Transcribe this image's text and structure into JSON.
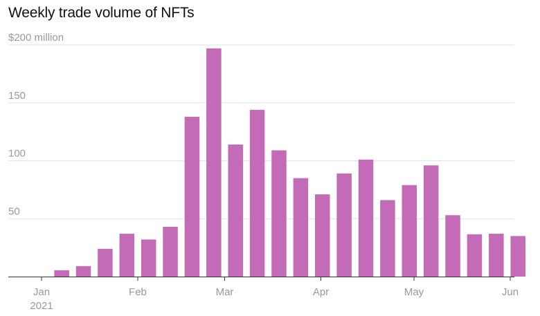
{
  "chart_data": {
    "type": "bar",
    "title": "Weekly trade volume of NFTs",
    "y_unit_label": "$200 million",
    "ylim": [
      0,
      200
    ],
    "yticks": [
      {
        "value": 200,
        "label": "$200 million"
      },
      {
        "value": 150,
        "label": "150"
      },
      {
        "value": 100,
        "label": "100"
      },
      {
        "value": 50,
        "label": "50"
      }
    ],
    "x_tick_labels": [
      "Jan",
      "Feb",
      "Mar",
      "Apr",
      "May",
      "Jun"
    ],
    "x_year_label": "2021",
    "x_range": [
      "2021-01-01",
      "2021-06-01"
    ],
    "x_ticks": [
      "2021-01-01",
      "2021-02-01",
      "2021-03-01",
      "2021-04-01",
      "2021-05-01",
      "2021-06-01"
    ],
    "bar_color": "#c46bb8",
    "grid": true,
    "x": [
      "2021-01-04",
      "2021-01-11",
      "2021-01-18",
      "2021-01-25",
      "2021-02-01",
      "2021-02-08",
      "2021-02-15",
      "2021-02-22",
      "2021-03-01",
      "2021-03-08",
      "2021-03-15",
      "2021-03-22",
      "2021-03-29",
      "2021-04-05",
      "2021-04-12",
      "2021-04-19",
      "2021-04-26",
      "2021-05-03",
      "2021-05-10",
      "2021-05-17",
      "2021-05-24",
      "2021-05-31"
    ],
    "values": [
      5.5,
      9,
      24,
      37,
      32,
      43,
      138,
      197,
      114,
      144,
      109,
      85,
      71,
      89,
      101,
      66,
      79,
      96,
      53,
      36.5,
      37,
      35
    ]
  }
}
